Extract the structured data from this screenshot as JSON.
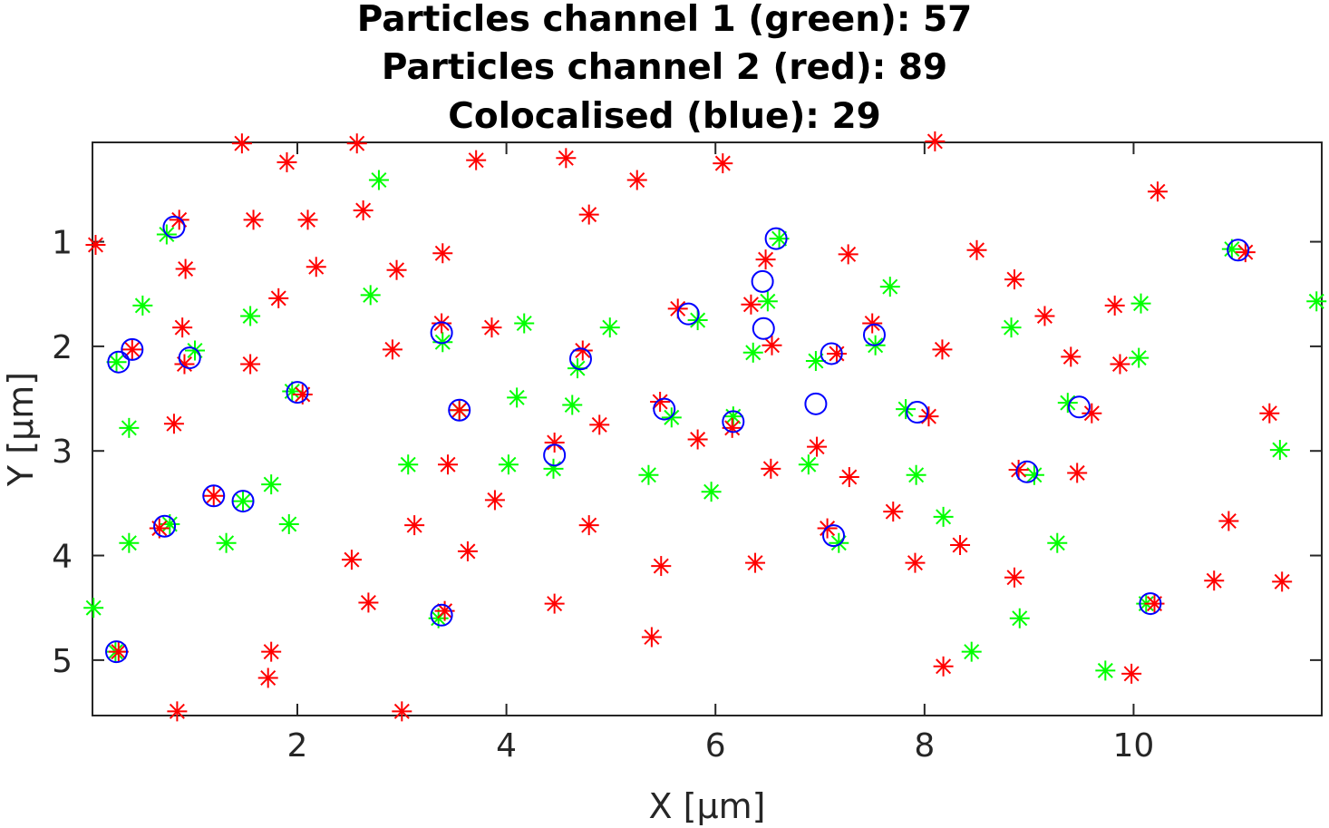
{
  "chart_data": {
    "type": "scatter",
    "title": [
      "Particles channel 1 (green): 57",
      "Particles channel 2 (red): 89",
      "Colocalised (blue): 29"
    ],
    "xlabel": "X [μm]",
    "ylabel": "Y [μm]",
    "xlim": [
      0.04,
      11.8
    ],
    "ylim": [
      0.05,
      5.53
    ],
    "y_axis_reversed": true,
    "xticks": [
      2,
      4,
      6,
      8,
      10
    ],
    "yticks": [
      1,
      2,
      3,
      4,
      5
    ],
    "grid": false,
    "colors": {
      "green": "#00ff00",
      "red": "#ff0000",
      "blue": "#0000ff"
    },
    "series": [
      {
        "name": "channel 1 (green)",
        "marker": "asterisk",
        "points": [
          [
            0.75,
            0.93
          ],
          [
            0.27,
            2.15
          ],
          [
            1.02,
            2.04
          ],
          [
            0.52,
            1.61
          ],
          [
            0.39,
            2.78
          ],
          [
            0.39,
            3.88
          ],
          [
            0.05,
            4.5
          ],
          [
            0.78,
            3.7
          ],
          [
            1.32,
            3.88
          ],
          [
            1.48,
            3.48
          ],
          [
            1.55,
            1.71
          ],
          [
            1.75,
            3.32
          ],
          [
            1.92,
            3.7
          ],
          [
            1.95,
            2.43
          ],
          [
            2.7,
            1.51
          ],
          [
            2.78,
            0.41
          ],
          [
            3.06,
            3.13
          ],
          [
            3.35,
            4.6
          ],
          [
            3.39,
            1.96
          ],
          [
            3.55,
            2.61
          ],
          [
            4.02,
            3.13
          ],
          [
            4.1,
            2.49
          ],
          [
            4.17,
            1.78
          ],
          [
            4.45,
            3.17
          ],
          [
            4.63,
            2.56
          ],
          [
            4.68,
            2.21
          ],
          [
            4.99,
            1.82
          ],
          [
            5.36,
            3.23
          ],
          [
            5.58,
            2.68
          ],
          [
            5.83,
            1.75
          ],
          [
            5.96,
            3.39
          ],
          [
            6.17,
            2.67
          ],
          [
            6.36,
            2.06
          ],
          [
            6.5,
            1.57
          ],
          [
            6.61,
            0.97
          ],
          [
            6.89,
            3.13
          ],
          [
            6.96,
            2.14
          ],
          [
            7.18,
            3.88
          ],
          [
            7.53,
            1.99
          ],
          [
            7.67,
            1.43
          ],
          [
            7.82,
            2.6
          ],
          [
            7.92,
            3.23
          ],
          [
            8.18,
            3.63
          ],
          [
            8.45,
            4.92
          ],
          [
            8.83,
            1.82
          ],
          [
            8.91,
            4.6
          ],
          [
            9.05,
            3.23
          ],
          [
            9.27,
            3.88
          ],
          [
            9.37,
            2.54
          ],
          [
            9.73,
            5.1
          ],
          [
            10.05,
            2.11
          ],
          [
            10.07,
            1.59
          ],
          [
            10.12,
            4.46
          ],
          [
            10.94,
            1.07
          ],
          [
            11.4,
            2.99
          ],
          [
            11.75,
            1.57
          ],
          [
            0.26,
            4.92
          ]
        ]
      },
      {
        "name": "channel 2 (red)",
        "marker": "asterisk",
        "points": [
          [
            0.07,
            1.03
          ],
          [
            0.42,
            2.03
          ],
          [
            0.68,
            3.74
          ],
          [
            0.82,
            2.74
          ],
          [
            0.85,
            5.49
          ],
          [
            0.87,
            0.79
          ],
          [
            0.9,
            1.82
          ],
          [
            0.92,
            2.17
          ],
          [
            0.93,
            1.26
          ],
          [
            1.2,
            3.43
          ],
          [
            1.47,
            0.06
          ],
          [
            1.55,
            2.17
          ],
          [
            1.58,
            0.79
          ],
          [
            1.72,
            5.17
          ],
          [
            1.75,
            4.92
          ],
          [
            1.82,
            1.54
          ],
          [
            1.9,
            0.24
          ],
          [
            2.05,
            2.46
          ],
          [
            2.1,
            0.79
          ],
          [
            2.18,
            1.24
          ],
          [
            2.52,
            4.04
          ],
          [
            2.57,
            0.06
          ],
          [
            2.63,
            0.7
          ],
          [
            2.68,
            4.45
          ],
          [
            2.91,
            2.03
          ],
          [
            2.95,
            1.27
          ],
          [
            3.0,
            5.49
          ],
          [
            3.12,
            3.71
          ],
          [
            3.39,
            1.11
          ],
          [
            3.41,
            4.53
          ],
          [
            3.38,
            1.78
          ],
          [
            3.44,
            3.13
          ],
          [
            3.55,
            2.61
          ],
          [
            3.63,
            3.96
          ],
          [
            3.71,
            0.22
          ],
          [
            3.86,
            1.82
          ],
          [
            3.89,
            3.47
          ],
          [
            4.46,
            2.92
          ],
          [
            4.46,
            4.46
          ],
          [
            4.57,
            0.2
          ],
          [
            4.73,
            2.04
          ],
          [
            4.79,
            0.74
          ],
          [
            4.79,
            3.71
          ],
          [
            4.89,
            2.75
          ],
          [
            5.25,
            0.41
          ],
          [
            5.39,
            4.78
          ],
          [
            5.47,
            2.53
          ],
          [
            5.48,
            4.1
          ],
          [
            5.64,
            1.64
          ],
          [
            5.83,
            2.89
          ],
          [
            6.07,
            0.25
          ],
          [
            6.16,
            2.78
          ],
          [
            6.34,
            1.6
          ],
          [
            6.38,
            4.07
          ],
          [
            6.48,
            1.17
          ],
          [
            6.53,
            3.17
          ],
          [
            6.54,
            1.99
          ],
          [
            6.97,
            2.96
          ],
          [
            7.07,
            3.74
          ],
          [
            7.16,
            2.07
          ],
          [
            7.27,
            1.12
          ],
          [
            7.28,
            3.25
          ],
          [
            7.5,
            1.78
          ],
          [
            7.7,
            3.58
          ],
          [
            7.91,
            4.07
          ],
          [
            8.04,
            2.67
          ],
          [
            8.1,
            0.04
          ],
          [
            8.17,
            2.03
          ],
          [
            8.18,
            5.06
          ],
          [
            8.34,
            3.9
          ],
          [
            8.5,
            1.08
          ],
          [
            8.86,
            1.36
          ],
          [
            8.86,
            4.21
          ],
          [
            8.9,
            3.18
          ],
          [
            9.15,
            1.71
          ],
          [
            9.4,
            2.1
          ],
          [
            9.46,
            3.21
          ],
          [
            9.6,
            2.64
          ],
          [
            9.82,
            1.61
          ],
          [
            9.87,
            2.17
          ],
          [
            9.98,
            5.13
          ],
          [
            10.2,
            4.46
          ],
          [
            10.23,
            0.52
          ],
          [
            10.77,
            4.24
          ],
          [
            10.91,
            3.67
          ],
          [
            11.3,
            2.64
          ],
          [
            11.42,
            4.25
          ],
          [
            11.07,
            1.1
          ],
          [
            0.29,
            4.92
          ]
        ]
      },
      {
        "name": "Colocalised (blue)",
        "marker": "circle",
        "points": [
          [
            0.82,
            0.86
          ],
          [
            0.29,
            2.15
          ],
          [
            0.42,
            2.03
          ],
          [
            0.97,
            2.11
          ],
          [
            1.2,
            3.43
          ],
          [
            1.48,
            3.48
          ],
          [
            2.0,
            2.44
          ],
          [
            0.73,
            3.72
          ],
          [
            0.27,
            4.92
          ],
          [
            3.38,
            4.57
          ],
          [
            3.38,
            1.87
          ],
          [
            3.55,
            2.61
          ],
          [
            4.46,
            3.04
          ],
          [
            4.71,
            2.12
          ],
          [
            5.51,
            2.6
          ],
          [
            5.74,
            1.69
          ],
          [
            6.17,
            2.72
          ],
          [
            6.45,
            1.38
          ],
          [
            6.46,
            1.83
          ],
          [
            6.58,
            0.97
          ],
          [
            6.96,
            2.55
          ],
          [
            7.13,
            3.81
          ],
          [
            7.11,
            2.07
          ],
          [
            7.52,
            1.89
          ],
          [
            7.93,
            2.63
          ],
          [
            8.98,
            3.2
          ],
          [
            9.48,
            2.58
          ],
          [
            10.16,
            4.46
          ],
          [
            11.0,
            1.08
          ]
        ]
      }
    ]
  }
}
